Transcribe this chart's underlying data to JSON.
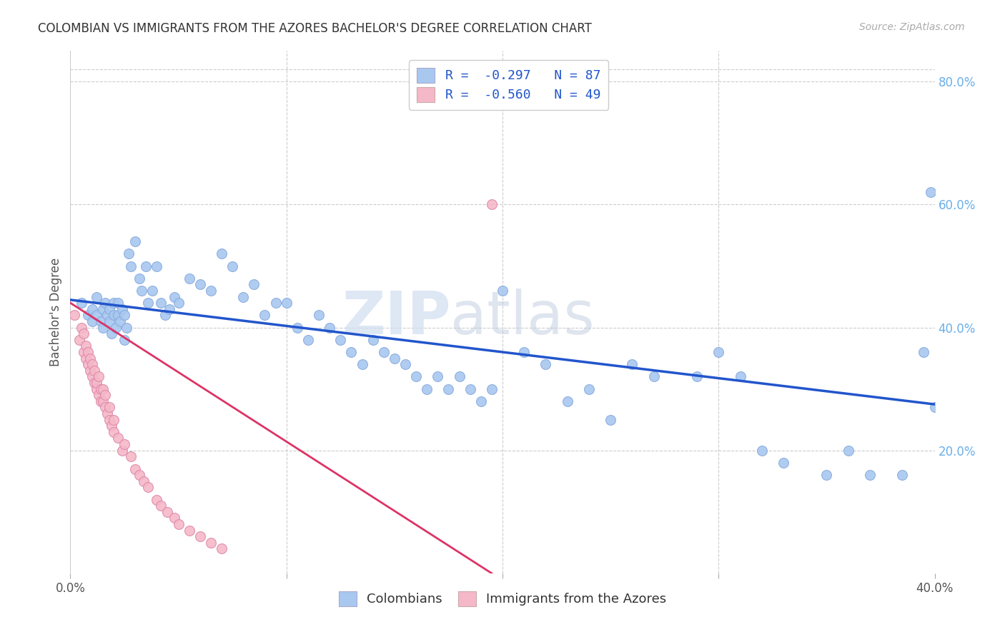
{
  "title": "COLOMBIAN VS IMMIGRANTS FROM THE AZORES BACHELOR'S DEGREE CORRELATION CHART",
  "source": "Source: ZipAtlas.com",
  "ylabel": "Bachelor's Degree",
  "right_yticks": [
    "80.0%",
    "60.0%",
    "40.0%",
    "20.0%"
  ],
  "right_ytick_vals": [
    0.8,
    0.6,
    0.4,
    0.2
  ],
  "xlim": [
    0.0,
    0.4
  ],
  "ylim": [
    0.0,
    0.85
  ],
  "legend_r1": "R =  -0.297   N = 87",
  "legend_r2": "R =  -0.560   N = 49",
  "blue_color": "#a8c8f0",
  "pink_color": "#f5b8c8",
  "trend_blue": "#2255cc",
  "trend_pink": "#dd3366",
  "watermark_zip": "ZIP",
  "watermark_atlas": "atlas",
  "blue_scatter_x": [
    0.005,
    0.008,
    0.01,
    0.01,
    0.012,
    0.012,
    0.014,
    0.015,
    0.015,
    0.016,
    0.017,
    0.018,
    0.018,
    0.019,
    0.02,
    0.02,
    0.021,
    0.022,
    0.022,
    0.023,
    0.024,
    0.025,
    0.025,
    0.026,
    0.027,
    0.028,
    0.03,
    0.032,
    0.033,
    0.035,
    0.036,
    0.038,
    0.04,
    0.042,
    0.044,
    0.046,
    0.048,
    0.05,
    0.055,
    0.06,
    0.065,
    0.07,
    0.075,
    0.08,
    0.085,
    0.09,
    0.095,
    0.1,
    0.105,
    0.11,
    0.115,
    0.12,
    0.125,
    0.13,
    0.135,
    0.14,
    0.145,
    0.15,
    0.155,
    0.16,
    0.165,
    0.17,
    0.175,
    0.18,
    0.185,
    0.19,
    0.195,
    0.2,
    0.21,
    0.22,
    0.23,
    0.24,
    0.25,
    0.26,
    0.27,
    0.29,
    0.3,
    0.31,
    0.32,
    0.33,
    0.35,
    0.36,
    0.37,
    0.385,
    0.395,
    0.398,
    0.4
  ],
  "blue_scatter_y": [
    0.44,
    0.42,
    0.43,
    0.41,
    0.45,
    0.42,
    0.41,
    0.43,
    0.4,
    0.44,
    0.42,
    0.41,
    0.43,
    0.39,
    0.44,
    0.42,
    0.4,
    0.42,
    0.44,
    0.41,
    0.43,
    0.42,
    0.38,
    0.4,
    0.52,
    0.5,
    0.54,
    0.48,
    0.46,
    0.5,
    0.44,
    0.46,
    0.5,
    0.44,
    0.42,
    0.43,
    0.45,
    0.44,
    0.48,
    0.47,
    0.46,
    0.52,
    0.5,
    0.45,
    0.47,
    0.42,
    0.44,
    0.44,
    0.4,
    0.38,
    0.42,
    0.4,
    0.38,
    0.36,
    0.34,
    0.38,
    0.36,
    0.35,
    0.34,
    0.32,
    0.3,
    0.32,
    0.3,
    0.32,
    0.3,
    0.28,
    0.3,
    0.46,
    0.36,
    0.34,
    0.28,
    0.3,
    0.25,
    0.34,
    0.32,
    0.32,
    0.36,
    0.32,
    0.2,
    0.18,
    0.16,
    0.2,
    0.16,
    0.16,
    0.36,
    0.62,
    0.27
  ],
  "pink_scatter_x": [
    0.002,
    0.004,
    0.005,
    0.006,
    0.006,
    0.007,
    0.007,
    0.008,
    0.008,
    0.009,
    0.009,
    0.01,
    0.01,
    0.011,
    0.011,
    0.012,
    0.012,
    0.013,
    0.013,
    0.014,
    0.014,
    0.015,
    0.015,
    0.016,
    0.016,
    0.017,
    0.018,
    0.018,
    0.019,
    0.02,
    0.02,
    0.022,
    0.024,
    0.025,
    0.028,
    0.03,
    0.032,
    0.034,
    0.036,
    0.04,
    0.042,
    0.045,
    0.048,
    0.05,
    0.055,
    0.06,
    0.065,
    0.07,
    0.195
  ],
  "pink_scatter_y": [
    0.42,
    0.38,
    0.4,
    0.36,
    0.39,
    0.35,
    0.37,
    0.34,
    0.36,
    0.33,
    0.35,
    0.32,
    0.34,
    0.31,
    0.33,
    0.3,
    0.31,
    0.29,
    0.32,
    0.28,
    0.3,
    0.28,
    0.3,
    0.27,
    0.29,
    0.26,
    0.25,
    0.27,
    0.24,
    0.23,
    0.25,
    0.22,
    0.2,
    0.21,
    0.19,
    0.17,
    0.16,
    0.15,
    0.14,
    0.12,
    0.11,
    0.1,
    0.09,
    0.08,
    0.07,
    0.06,
    0.05,
    0.04,
    0.6
  ],
  "blue_trend_x": [
    0.0,
    0.4
  ],
  "blue_trend_y": [
    0.445,
    0.275
  ],
  "pink_trend_x": [
    0.0,
    0.195
  ],
  "pink_trend_y": [
    0.44,
    0.0
  ],
  "background_color": "#ffffff",
  "grid_color": "#cccccc"
}
